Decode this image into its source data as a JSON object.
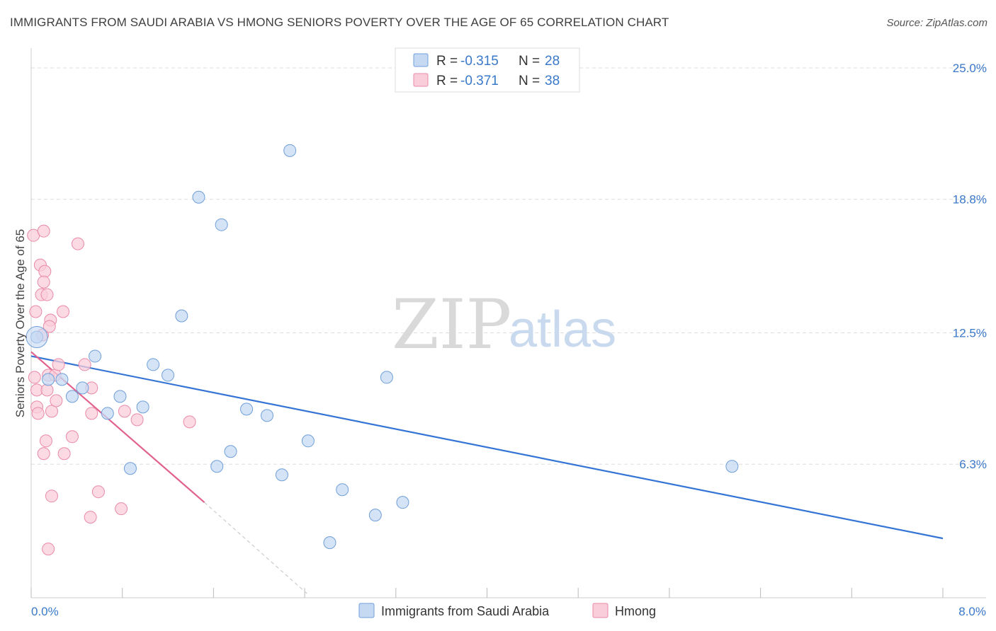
{
  "header": {
    "title": "IMMIGRANTS FROM SAUDI ARABIA VS HMONG SENIORS POVERTY OVER THE AGE OF 65 CORRELATION CHART",
    "source": "Source: ZipAtlas.com"
  },
  "watermark": {
    "zip": "ZIP",
    "atlas": "atlas"
  },
  "colors": {
    "blue_fill": "#c5d9f3",
    "blue_stroke": "#6f9fd8",
    "blue_line": "#3474d4",
    "pink_fill": "#f9cdd9",
    "pink_stroke": "#ea8aa8",
    "pink_line": "#e0628d",
    "grid": "#dddddd",
    "axis_text": "#3a78c9"
  },
  "legend": {
    "rows": [
      {
        "r_label": "R =",
        "r_value": "-0.315",
        "n_label": "N =",
        "n_value": "28"
      },
      {
        "r_label": "R =",
        "r_value": "-0.371",
        "n_label": "N =",
        "n_value": "38"
      }
    ]
  },
  "bottom_legend": [
    "Immigrants from Saudi Arabia",
    "Hmong"
  ],
  "chart_data": {
    "type": "scatter",
    "title": "IMMIGRANTS FROM SAUDI ARABIA VS HMONG SENIORS POVERTY OVER THE AGE OF 65 CORRELATION CHART",
    "xlabel": "",
    "ylabel": "Seniors Poverty Over the Age of 65",
    "xlim": [
      0,
      8.0
    ],
    "ylim": [
      0,
      25.6
    ],
    "x_tick_labels": [
      "0.0%",
      "8.0%"
    ],
    "y_ticks": [
      6.3,
      12.5,
      18.8,
      25.0
    ],
    "y_tick_labels": [
      "6.3%",
      "12.5%",
      "18.8%",
      "25.0%"
    ],
    "series": [
      {
        "name": "Immigrants from Saudi Arabia",
        "r": -0.315,
        "n": 28,
        "trend": {
          "x0": 0.0,
          "y0": 11.4,
          "x1": 8.0,
          "y1": 2.8
        },
        "points": [
          [
            0.05,
            12.3
          ],
          [
            0.15,
            10.3
          ],
          [
            0.27,
            10.3
          ],
          [
            0.36,
            9.5
          ],
          [
            0.45,
            9.9
          ],
          [
            0.56,
            11.4
          ],
          [
            0.67,
            8.7
          ],
          [
            0.78,
            9.5
          ],
          [
            0.87,
            6.1
          ],
          [
            0.98,
            9.0
          ],
          [
            1.07,
            11.0
          ],
          [
            1.2,
            10.5
          ],
          [
            1.32,
            13.3
          ],
          [
            1.47,
            18.9
          ],
          [
            1.63,
            6.2
          ],
          [
            1.67,
            17.6
          ],
          [
            1.75,
            6.9
          ],
          [
            1.89,
            8.9
          ],
          [
            2.07,
            8.6
          ],
          [
            2.2,
            5.8
          ],
          [
            2.27,
            21.1
          ],
          [
            2.43,
            7.4
          ],
          [
            2.62,
            2.6
          ],
          [
            2.73,
            5.1
          ],
          [
            3.02,
            3.9
          ],
          [
            3.12,
            10.4
          ],
          [
            3.26,
            4.5
          ],
          [
            6.15,
            6.2
          ]
        ]
      },
      {
        "name": "Hmong",
        "r": -0.371,
        "n": 38,
        "trend": {
          "x0": 0.0,
          "y0": 11.6,
          "x1": 1.52,
          "y1": 4.5
        },
        "trend_dashed": {
          "x0": 1.52,
          "y0": 4.5,
          "x1": 2.42,
          "y1": 0.2
        },
        "points": [
          [
            0.02,
            17.1
          ],
          [
            0.04,
            13.5
          ],
          [
            0.03,
            10.4
          ],
          [
            0.05,
            9.0
          ],
          [
            0.06,
            8.7
          ],
          [
            0.05,
            9.8
          ],
          [
            0.08,
            15.7
          ],
          [
            0.09,
            14.3
          ],
          [
            0.1,
            12.4
          ],
          [
            0.11,
            17.3
          ],
          [
            0.12,
            15.4
          ],
          [
            0.11,
            14.9
          ],
          [
            0.11,
            6.8
          ],
          [
            0.13,
            7.4
          ],
          [
            0.14,
            14.3
          ],
          [
            0.15,
            10.5
          ],
          [
            0.14,
            9.8
          ],
          [
            0.15,
            2.3
          ],
          [
            0.17,
            13.1
          ],
          [
            0.16,
            12.8
          ],
          [
            0.18,
            8.8
          ],
          [
            0.18,
            4.8
          ],
          [
            0.21,
            10.5
          ],
          [
            0.22,
            9.3
          ],
          [
            0.24,
            11.0
          ],
          [
            0.28,
            13.5
          ],
          [
            0.29,
            6.8
          ],
          [
            0.36,
            7.6
          ],
          [
            0.41,
            16.7
          ],
          [
            0.47,
            11.0
          ],
          [
            0.52,
            3.8
          ],
          [
            0.53,
            9.9
          ],
          [
            0.53,
            8.7
          ],
          [
            0.59,
            5.0
          ],
          [
            0.79,
            4.2
          ],
          [
            0.82,
            8.8
          ],
          [
            0.93,
            8.4
          ],
          [
            1.39,
            8.3
          ]
        ]
      }
    ]
  }
}
